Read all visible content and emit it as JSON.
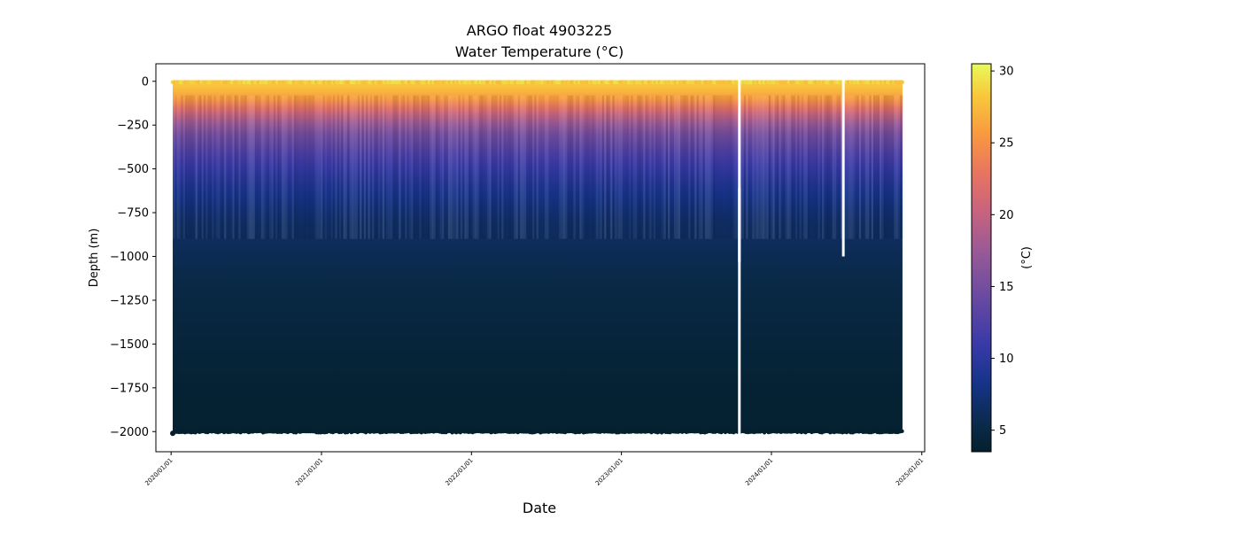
{
  "chart_data": {
    "type": "heatmap",
    "title": [
      "ARGO float 4903225",
      "Water Temperature"
    ],
    "title_unit": "(°C)",
    "xlabel": "Date",
    "ylabel": "Depth (m)",
    "colorbar_label": "(°C)",
    "colormap": "thermal",
    "x_range": [
      "2019-11-25",
      "2025-01-08"
    ],
    "ylim": [
      -2115,
      100
    ],
    "color_range": [
      3.5,
      30.5
    ],
    "x_ticks": [
      "2020/01/01",
      "2021/01/01",
      "2022/01/01",
      "2023/01/01",
      "2024/01/01",
      "2025/01/01"
    ],
    "y_ticks": [
      "0",
      "−250",
      "−500",
      "−750",
      "−1000",
      "−1250",
      "−1500",
      "−1750",
      "−2000"
    ],
    "y_tick_values": [
      0,
      -250,
      -500,
      -750,
      -1000,
      -1250,
      -1500,
      -1750,
      -2000
    ],
    "colorbar_ticks": [
      "5",
      "10",
      "15",
      "20",
      "25",
      "30"
    ],
    "colorbar_tick_values": [
      5,
      10,
      15,
      20,
      25,
      30
    ],
    "data_start": "2020-01-05",
    "data_end": "2024-11-15",
    "max_depth": -2000,
    "gaps": [
      {
        "date": "2023-10-15",
        "depth_from": -610,
        "depth_to": -1030
      },
      {
        "date": "2024-06-24",
        "depth_from": 0,
        "depth_to": -1000
      }
    ],
    "full_gap": {
      "date": "2023-10-15",
      "depth_from": 0,
      "depth_to": -2000
    },
    "profile_temperature": {
      "depth": [
        0,
        -50,
        -100,
        -150,
        -200,
        -250,
        -300,
        -400,
        -500,
        -600,
        -700,
        -800,
        -1000,
        -1200,
        -1500,
        -1800,
        -2000
      ],
      "temperature": [
        28.5,
        27.5,
        25.5,
        22.5,
        19.5,
        17.0,
        15.0,
        12.5,
        10.5,
        9.0,
        7.8,
        6.8,
        5.8,
        5.0,
        4.3,
        3.9,
        3.7
      ]
    }
  }
}
